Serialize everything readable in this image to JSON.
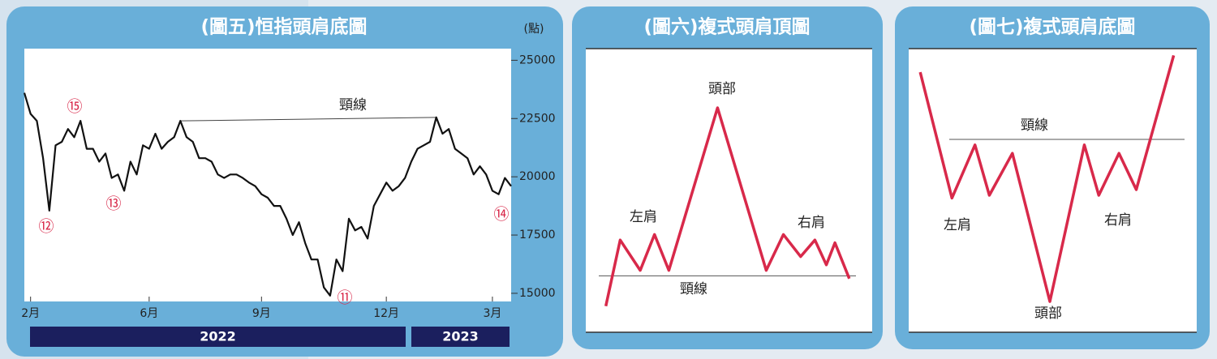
{
  "chart_data": [
    {
      "type": "line",
      "title": "(圖五)恒指頭肩底圖",
      "y_unit": "(點)",
      "categories": [
        null,
        "2月",
        null,
        null,
        null,
        null,
        null,
        null,
        null,
        null,
        null,
        null,
        null,
        null,
        null,
        null,
        null,
        null,
        null,
        null,
        "6月",
        null,
        null,
        null,
        null,
        null,
        null,
        null,
        null,
        null,
        null,
        null,
        null,
        null,
        null,
        null,
        null,
        null,
        "9月",
        null,
        null,
        null,
        null,
        null,
        null,
        null,
        null,
        null,
        null,
        null,
        null,
        null,
        null,
        null,
        null,
        null,
        null,
        null,
        "12月",
        null,
        null,
        null,
        null,
        null,
        null,
        null,
        null,
        null,
        null,
        null,
        null,
        null,
        null,
        null,
        null,
        "3月",
        null,
        null,
        null
      ],
      "values": [
        23600,
        22700,
        22400,
        20800,
        18550,
        21350,
        21500,
        22050,
        21700,
        22400,
        21200,
        21200,
        20650,
        21000,
        19950,
        20100,
        19400,
        20650,
        20100,
        21350,
        21200,
        21850,
        21200,
        21500,
        21700,
        22400,
        21700,
        21500,
        20800,
        20800,
        20650,
        20100,
        19950,
        20100,
        20100,
        19950,
        19750,
        19600,
        19250,
        19100,
        18750,
        18750,
        18200,
        17500,
        18050,
        17150,
        16450,
        16450,
        15250,
        14900,
        16450,
        15950,
        18200,
        17700,
        17850,
        17350,
        18750,
        19250,
        19750,
        19400,
        19600,
        19950,
        20650,
        21200,
        21350,
        21500,
        22550,
        21850,
        22050,
        21200,
        21000,
        20800,
        20100,
        20450,
        20100,
        19400,
        19250,
        19950,
        19600
      ],
      "color": "#111111",
      "ylim": [
        14650,
        25500
      ],
      "yticks": [
        15000,
        17500,
        20000,
        22500,
        25000
      ],
      "periods": [
        "2022",
        "2023"
      ],
      "annotations": [
        "頸線",
        "⑪",
        "⑫",
        "⑬",
        "⑭",
        "⑮"
      ]
    },
    {
      "type": "line",
      "title": "(圖六)複式頭肩頂圖",
      "x": [
        7,
        12,
        19,
        24,
        29,
        46,
        63,
        69,
        75,
        80,
        84,
        87,
        92
      ],
      "values": [
        8,
        32,
        21,
        34,
        21,
        80,
        21,
        34,
        26,
        32,
        23,
        31,
        18
      ],
      "color": "#d8294a",
      "xlim": [
        0,
        100
      ],
      "ylim": [
        0,
        100
      ],
      "neckline": {
        "label": "頸線",
        "value": 19
      },
      "annotations": [
        "左肩",
        "頭部",
        "右肩"
      ]
    },
    {
      "type": "line",
      "title": "(圖七)複式頭肩底圖",
      "x": [
        4,
        15,
        23,
        28,
        36,
        49,
        61,
        66,
        73,
        79,
        92
      ],
      "values": [
        93,
        48,
        67,
        49,
        64,
        11,
        67,
        49,
        64,
        51,
        99
      ],
      "color": "#d8294a",
      "xlim": [
        0,
        100
      ],
      "ylim": [
        0,
        100
      ],
      "neckline": {
        "label": "頸線",
        "value": 69
      },
      "annotations": [
        "左肩",
        "頭部",
        "右肩"
      ]
    }
  ]
}
